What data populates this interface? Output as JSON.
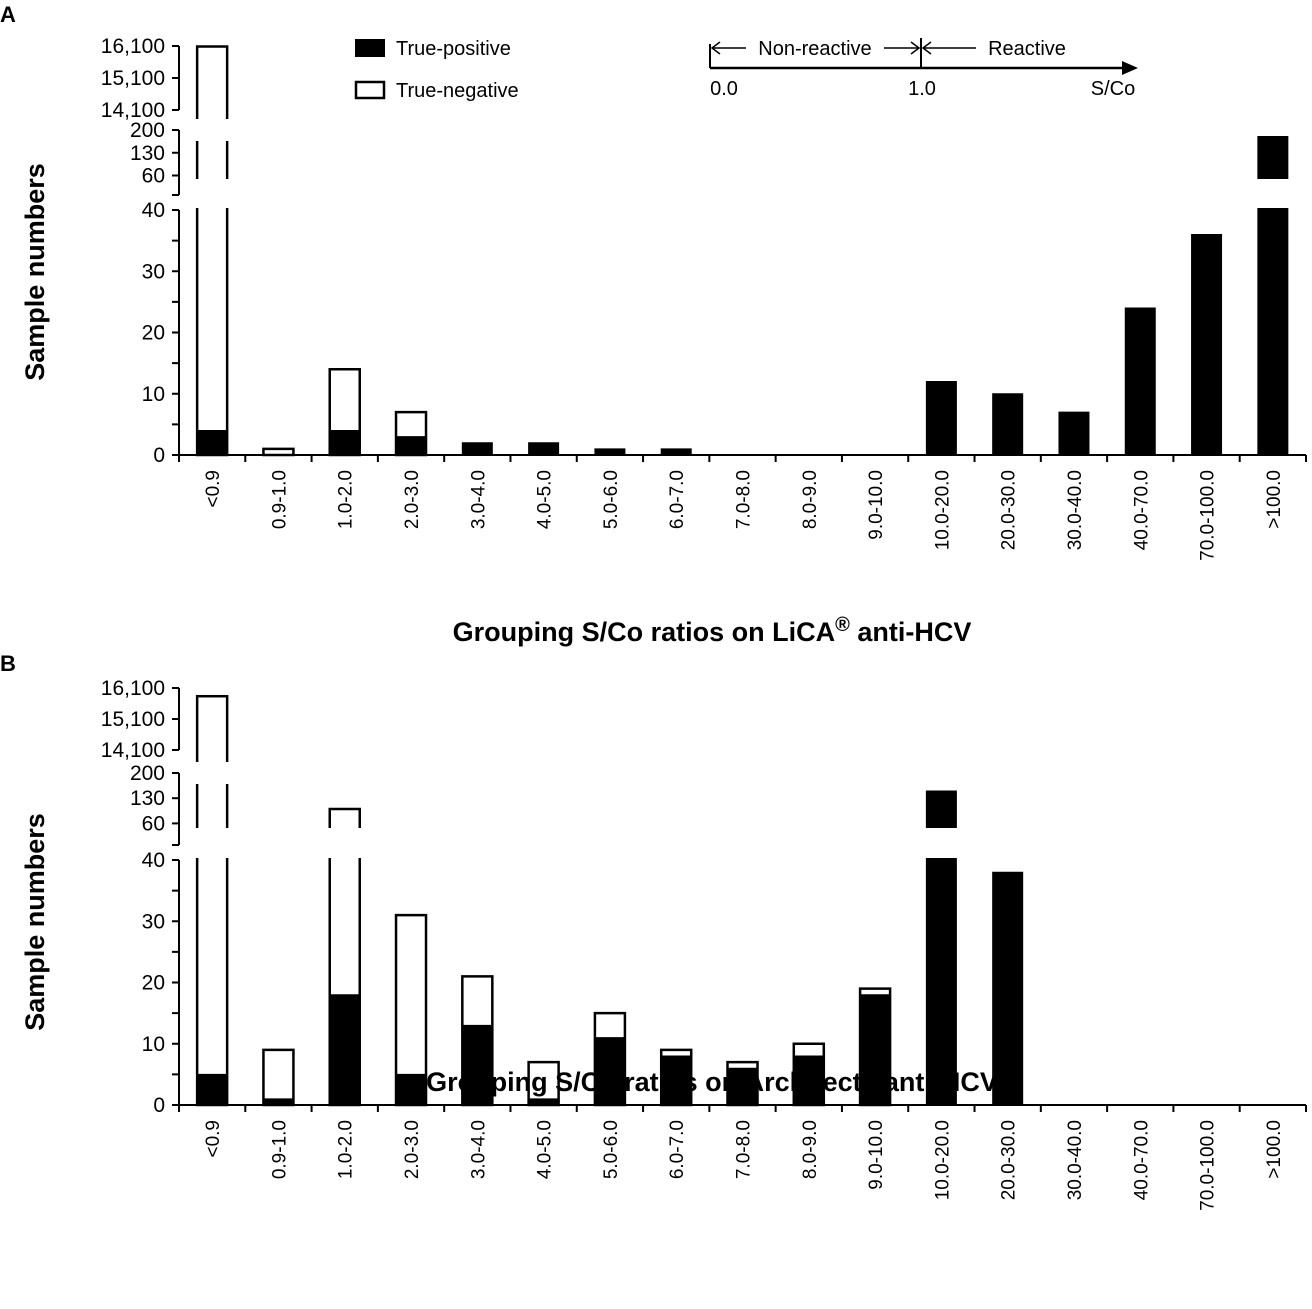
{
  "legend": {
    "positive": "True-positive",
    "negative": "True-negative"
  },
  "scale_note": {
    "non_reactive": "Non-reactive",
    "reactive": "Reactive",
    "zero": "0.0",
    "one": "1.0",
    "unit": "S/Co"
  },
  "colors": {
    "positive": "#000000",
    "negative": "#ffffff",
    "axis": "#000000"
  },
  "chart_data": [
    {
      "type": "bar",
      "stacked": true,
      "broken_y_axis": true,
      "panel_label": "A",
      "xlabel": "Grouping S/Co ratios on LiCA",
      "xlabel_mark": "®",
      "xlabel_suffix": " anti-HCV",
      "ylabel": "Sample numbers",
      "y_segments": [
        {
          "range": [
            0,
            40
          ],
          "ticks": [
            "0",
            "10",
            "20",
            "30",
            "40"
          ]
        },
        {
          "range": [
            0,
            200
          ],
          "ticks": [
            "60",
            "130",
            "200"
          ]
        },
        {
          "range": [
            14100,
            16100
          ],
          "ticks": [
            "14,100",
            "15,100",
            "16,100"
          ]
        }
      ],
      "categories": [
        "<0.9",
        "0.9-1.0",
        "1.0-2.0",
        "2.0-3.0",
        "3.0-4.0",
        "4.0-5.0",
        "5.0-6.0",
        "6.0-7.0",
        "7.0-8.0",
        "8.0-9.0",
        "9.0-10.0",
        "10.0-20.0",
        "20.0-30.0",
        "30.0-40.0",
        "40.0-70.0",
        "70.0-100.0",
        ">100.0"
      ],
      "series": [
        {
          "name": "True-positive",
          "values": [
            4,
            0,
            4,
            3,
            2,
            2,
            1,
            1,
            0,
            0,
            0,
            12,
            10,
            7,
            24,
            36,
            180
          ]
        },
        {
          "name": "True-negative",
          "values": [
            16080,
            1,
            10,
            4,
            0,
            0,
            0,
            0,
            0,
            0,
            0,
            0,
            0,
            0,
            0,
            0,
            0
          ]
        }
      ]
    },
    {
      "type": "bar",
      "stacked": true,
      "broken_y_axis": true,
      "panel_label": "B",
      "xlabel": "Grouping S/Co ratios on Architect",
      "xlabel_mark": "®",
      "xlabel_suffix": " anti-HCV",
      "ylabel": "Sample numbers",
      "y_segments": [
        {
          "range": [
            0,
            40
          ],
          "ticks": [
            "0",
            "10",
            "20",
            "30",
            "40"
          ]
        },
        {
          "range": [
            0,
            200
          ],
          "ticks": [
            "60",
            "130",
            "200"
          ]
        },
        {
          "range": [
            14100,
            16100
          ],
          "ticks": [
            "14,100",
            "15,100",
            "16,100"
          ]
        }
      ],
      "categories": [
        "<0.9",
        "0.9-1.0",
        "1.0-2.0",
        "2.0-3.0",
        "3.0-4.0",
        "4.0-5.0",
        "5.0-6.0",
        "6.0-7.0",
        "7.0-8.0",
        "8.0-9.0",
        "9.0-10.0",
        "10.0-20.0",
        "20.0-30.0",
        "30.0-40.0",
        "40.0-70.0",
        "70.0-100.0",
        ">100.0"
      ],
      "series": [
        {
          "name": "True-positive",
          "values": [
            5,
            1,
            18,
            5,
            13,
            1,
            11,
            8,
            6,
            8,
            18,
            150,
            38,
            0,
            0,
            0,
            0
          ]
        },
        {
          "name": "True-negative",
          "values": [
            15830,
            8,
            82,
            26,
            8,
            6,
            4,
            1,
            1,
            2,
            1,
            0,
            0,
            0,
            0,
            0,
            0
          ]
        }
      ]
    }
  ]
}
